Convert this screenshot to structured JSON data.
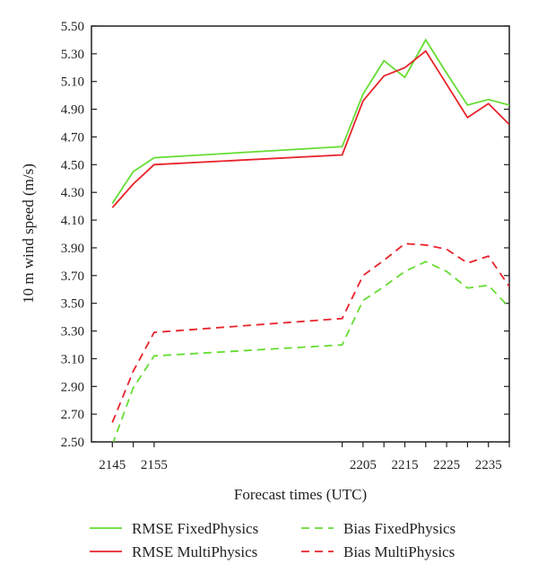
{
  "chart_data": {
    "type": "line",
    "xlabel": "Forecast times (UTC)",
    "ylabel": "10 m wind speed (m/s)",
    "x": [
      2145,
      2150,
      2155,
      2200,
      2205,
      2210,
      2215,
      2220,
      2225,
      2230,
      2235,
      2240
    ],
    "x_tick_values": [
      2145,
      2155,
      2205,
      2215,
      2225,
      2235
    ],
    "x_tick_labels": [
      "2145",
      "2155",
      "2205",
      "2215",
      "2225",
      "2235"
    ],
    "xlim": [
      2140,
      2240
    ],
    "ylim": [
      2.5,
      5.5
    ],
    "y_tick_labels": [
      "2.50",
      "2.70",
      "2.90",
      "3.10",
      "3.30",
      "3.50",
      "3.70",
      "3.90",
      "4.10",
      "4.30",
      "4.50",
      "4.70",
      "4.90",
      "5.10",
      "5.30",
      "5.50"
    ],
    "grid": false,
    "legend_position": "bottom",
    "series": [
      {
        "name": "RMSE FixedPhysics",
        "color": "#66dd33",
        "style": "solid",
        "values": [
          4.22,
          4.45,
          4.55,
          4.63,
          5.01,
          5.25,
          5.13,
          5.4,
          5.16,
          4.93,
          4.97,
          4.93
        ]
      },
      {
        "name": "RMSE MultiPhysics",
        "color": "#e8232b",
        "style": "solid",
        "values": [
          4.19,
          4.36,
          4.5,
          4.57,
          4.96,
          5.14,
          5.2,
          5.32,
          5.08,
          4.84,
          4.94,
          4.79
        ]
      },
      {
        "name": "Bias FixedPhysics",
        "color": "#66dd33",
        "style": "dashed",
        "values": [
          2.48,
          2.89,
          3.12,
          3.2,
          3.52,
          3.62,
          3.73,
          3.8,
          3.73,
          3.61,
          3.63,
          3.47
        ]
      },
      {
        "name": "Bias MultiPhysics",
        "color": "#e8232b",
        "style": "dashed",
        "values": [
          2.64,
          3.01,
          3.29,
          3.39,
          3.7,
          3.81,
          3.93,
          3.92,
          3.89,
          3.79,
          3.84,
          3.62
        ]
      }
    ]
  }
}
